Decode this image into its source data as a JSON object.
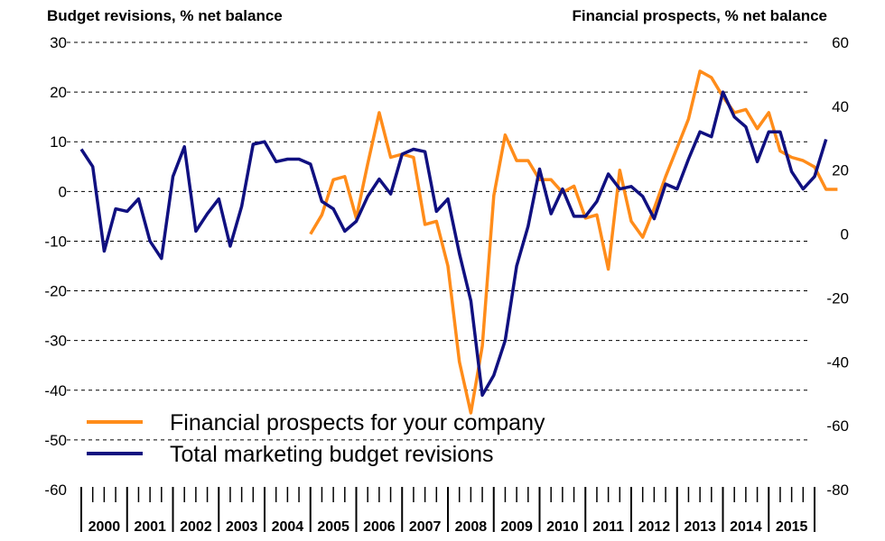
{
  "chart_data": {
    "type": "line",
    "left_axis_title": "Budget revisions, % net balance",
    "right_axis_title": "Financial prospects, % net balance",
    "left_ylim": [
      -60,
      30
    ],
    "left_ticks": [
      30,
      20,
      10,
      0,
      -10,
      -20,
      -30,
      -40,
      -50,
      -60
    ],
    "right_ylim": [
      -80,
      60
    ],
    "right_ticks": [
      60,
      40,
      20,
      0,
      -20,
      -40,
      -60,
      -80
    ],
    "grid": true,
    "legend_position": "bottom-left",
    "x_years": [
      "2000",
      "2001",
      "2002",
      "2003",
      "2004",
      "2005",
      "2006",
      "2007",
      "2008",
      "2009",
      "2010",
      "2011",
      "2012",
      "2013",
      "2014",
      "2015"
    ],
    "x_start": "2000 Q1",
    "x_end": "2016 Q1",
    "series": [
      {
        "name": "Financial prospects for your company",
        "axis": "right",
        "color": "#ff8c1a",
        "start": "2005 Q1",
        "values": [
          0,
          6,
          17,
          18,
          5,
          22,
          38,
          24,
          25,
          24,
          3,
          4,
          -10,
          -40,
          -56,
          -35,
          12,
          31,
          23,
          23,
          17,
          17,
          13,
          15,
          5,
          6,
          -11,
          20,
          4,
          -1,
          8,
          18,
          27,
          36,
          51,
          49,
          43,
          38,
          39,
          33,
          38,
          26,
          24,
          23,
          21,
          14,
          14
        ]
      },
      {
        "name": "Total marketing budget revisions",
        "axis": "left",
        "color": "#101080",
        "start": "2000 Q1",
        "values": [
          8.5,
          5,
          -12,
          -3.5,
          -4,
          -1.5,
          -10,
          -13.5,
          3,
          9,
          -8,
          -4.5,
          -1.5,
          -11,
          -3,
          9.5,
          10,
          6,
          6.5,
          6.5,
          5.5,
          -2,
          -3.5,
          -8,
          -6,
          -1,
          2.5,
          -0.5,
          7.5,
          8.5,
          8,
          -4,
          -1.5,
          -12.5,
          -22,
          -41,
          -37,
          -30,
          -15,
          -7,
          4.5,
          -4.5,
          0.5,
          -5,
          -5,
          -2,
          3.5,
          0.5,
          1,
          -1,
          -5.5,
          1.5,
          0.5,
          6.5,
          12,
          11,
          20,
          15,
          13,
          6,
          12,
          12,
          4,
          0.5,
          3,
          10.5
        ]
      }
    ]
  }
}
